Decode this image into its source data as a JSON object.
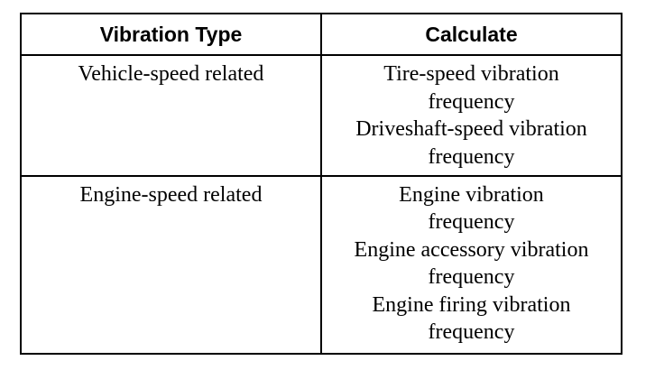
{
  "table": {
    "header": [
      "Vibration Type",
      "Calculate"
    ],
    "rows": [
      {
        "type": "Vehicle-speed related",
        "calculate": [
          "Tire-speed vibration",
          "frequency",
          "Driveshaft-speed vibration",
          "frequency"
        ]
      },
      {
        "type": "Engine-speed related",
        "calculate": [
          "Engine vibration",
          "frequency",
          "Engine accessory vibration",
          "frequency",
          "Engine firing vibration",
          "frequency"
        ]
      }
    ]
  }
}
